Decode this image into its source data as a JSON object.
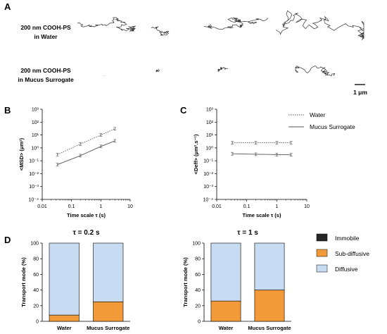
{
  "panels": {
    "A": "A",
    "B": "B",
    "C": "C",
    "D": "D"
  },
  "panel_a": {
    "row_labels": [
      [
        "200 nm COOH-PS",
        "in Water"
      ],
      [
        "200 nm COOH-PS",
        "in Mucus Surrogate"
      ]
    ],
    "scale_bar": "1 μm",
    "colors": {
      "trajectory": "#333333"
    }
  },
  "chart_data": [
    {
      "type": "line",
      "panel": "B",
      "x_scale": "log",
      "y_scale": "log",
      "xlabel": "Time scale τ (s)",
      "ylabel": "<MSD> (μm²)",
      "x_ticks": [
        "0.01",
        "0.1",
        "1",
        "10"
      ],
      "y_ticks": [
        "10⁻⁴",
        "10⁻³",
        "10⁻²",
        "10⁻¹",
        "10⁰",
        "10¹",
        "10²",
        "10³"
      ],
      "xlim": [
        0.01,
        10
      ],
      "ylim": [
        0.0001,
        1000
      ],
      "grid": false,
      "series": [
        {
          "name": "Water",
          "style": "dotted",
          "x": [
            0.033,
            0.2,
            1,
            3
          ],
          "y": [
            0.3,
            2.0,
            10,
            30
          ]
        },
        {
          "name": "Mucus Surrogate",
          "style": "solid",
          "x": [
            0.033,
            0.2,
            1,
            3
          ],
          "y": [
            0.05,
            0.25,
            1.3,
            3.5
          ]
        }
      ]
    },
    {
      "type": "line",
      "panel": "C",
      "x_scale": "log",
      "y_scale": "log",
      "xlabel": "Time scale τ (s)",
      "ylabel": "<Deff> (μm².s⁻¹)",
      "x_ticks": [
        "0.01",
        "0.1",
        "1",
        "10"
      ],
      "y_ticks": [
        "10⁻⁴",
        "10⁻³",
        "10⁻²",
        "10⁻¹",
        "10⁰",
        "10¹",
        "10²",
        "10³"
      ],
      "xlim": [
        0.01,
        10
      ],
      "ylim": [
        0.0001,
        1000
      ],
      "grid": false,
      "legend": {
        "placement": "right",
        "entries": [
          "Water",
          "Mucus Surrogate"
        ]
      },
      "series": [
        {
          "name": "Water",
          "style": "dotted",
          "x": [
            0.033,
            0.2,
            1,
            3
          ],
          "y": [
            2.5,
            2.5,
            2.5,
            2.5
          ]
        },
        {
          "name": "Mucus Surrogate",
          "style": "solid",
          "x": [
            0.033,
            0.2,
            1,
            3
          ],
          "y": [
            0.35,
            0.32,
            0.3,
            0.29
          ]
        }
      ]
    },
    {
      "type": "bar",
      "stacked": true,
      "panel": "D",
      "title": "τ = 0.2 s",
      "ylabel": "Transport mode (%)",
      "categories": [
        "Water",
        "Mucus Surrogate"
      ],
      "y_ticks": [
        "0",
        "20",
        "40",
        "60",
        "80",
        "100"
      ],
      "ylim": [
        0,
        100
      ],
      "series": [
        {
          "name": "Immobile",
          "values": [
            0,
            0
          ]
        },
        {
          "name": "Sub-diffusive",
          "values": [
            8,
            25
          ]
        },
        {
          "name": "Diffusive",
          "values": [
            92,
            75
          ]
        }
      ]
    },
    {
      "type": "bar",
      "stacked": true,
      "panel": "D",
      "title": "τ = 1 s",
      "ylabel": "Transport mode (%)",
      "categories": [
        "Water",
        "Mucus Surrogate"
      ],
      "y_ticks": [
        "0",
        "20",
        "40",
        "60",
        "80",
        "100"
      ],
      "ylim": [
        0,
        100
      ],
      "legend": {
        "placement": "right",
        "entries": [
          "Immobile",
          "Sub-diffusive",
          "Diffusive"
        ]
      },
      "series": [
        {
          "name": "Immobile",
          "values": [
            0,
            0
          ]
        },
        {
          "name": "Sub-diffusive",
          "values": [
            26,
            40
          ]
        },
        {
          "name": "Diffusive",
          "values": [
            74,
            60
          ]
        }
      ]
    }
  ],
  "colors": {
    "immobile": "#262626",
    "subdiffusive": "#f29a38",
    "diffusive": "#c7dbf3",
    "axis": "#000000",
    "line": "#555555"
  }
}
